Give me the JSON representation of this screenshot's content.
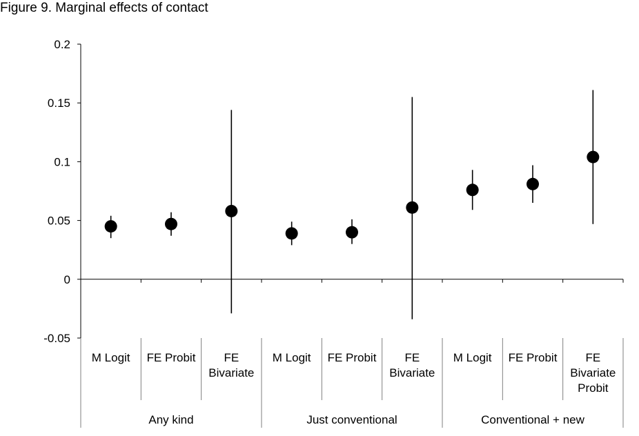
{
  "figure_title": "Figure 9. Marginal effects of contact",
  "chart_data": {
    "type": "scatter",
    "subtype": "point-with-error-bars",
    "title": "Figure 9. Marginal effects of contact",
    "xlabel": "",
    "ylabel": "",
    "ylim": [
      -0.05,
      0.2
    ],
    "yticks": [
      -0.05,
      0,
      0.05,
      0.1,
      0.15,
      0.2
    ],
    "ytick_labels": [
      "-0.05",
      "0",
      "0.05",
      "0.1",
      "0.15",
      "0.2"
    ],
    "grid": false,
    "legend": "none",
    "marker_color": "#000000",
    "groups": [
      {
        "label": "Any kind",
        "categories": [
          {
            "label": [
              "M Logit"
            ],
            "value": 0.045,
            "lower": 0.035,
            "upper": 0.054
          },
          {
            "label": [
              "FE Probit"
            ],
            "value": 0.047,
            "lower": 0.037,
            "upper": 0.057
          },
          {
            "label": [
              "FE",
              "Bivariate"
            ],
            "value": 0.058,
            "lower": -0.029,
            "upper": 0.144
          }
        ]
      },
      {
        "label": "Just conventional",
        "categories": [
          {
            "label": [
              "M Logit"
            ],
            "value": 0.039,
            "lower": 0.029,
            "upper": 0.049
          },
          {
            "label": [
              "FE Probit"
            ],
            "value": 0.04,
            "lower": 0.03,
            "upper": 0.051
          },
          {
            "label": [
              "FE",
              "Bivariate"
            ],
            "value": 0.061,
            "lower": -0.034,
            "upper": 0.155
          }
        ]
      },
      {
        "label": "Conventional + new",
        "categories": [
          {
            "label": [
              "M Logit"
            ],
            "value": 0.076,
            "lower": 0.059,
            "upper": 0.093
          },
          {
            "label": [
              "FE Probit"
            ],
            "value": 0.081,
            "lower": 0.065,
            "upper": 0.097
          },
          {
            "label": [
              "FE",
              "Bivariate",
              "Probit"
            ],
            "value": 0.104,
            "lower": 0.047,
            "upper": 0.161
          }
        ]
      }
    ]
  }
}
